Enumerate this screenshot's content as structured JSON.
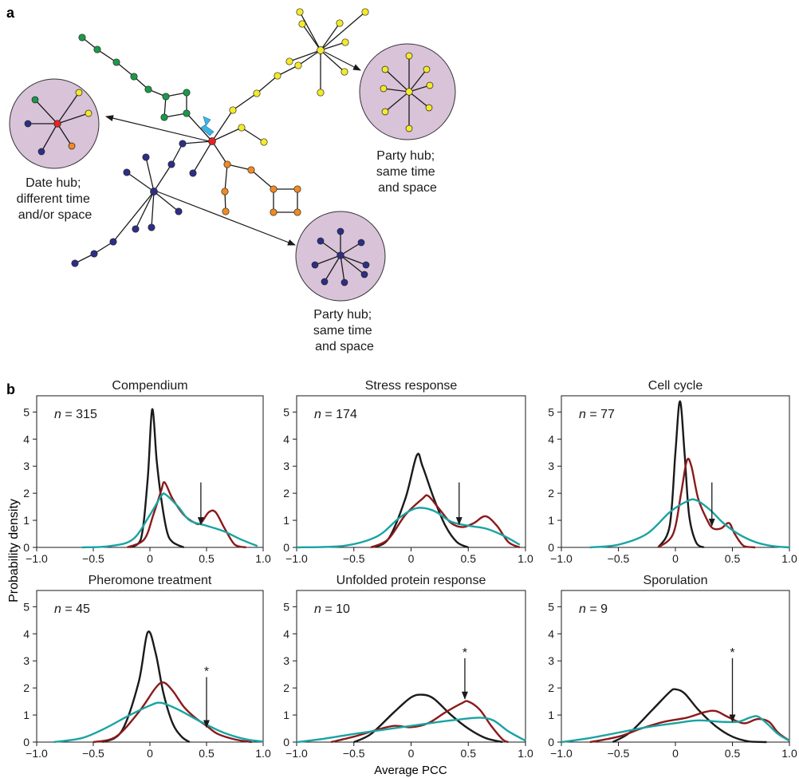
{
  "panel_a": {
    "label": "a",
    "callouts": [
      {
        "name": "date-hub-callout",
        "lines": [
          "Date hub;",
          "different time",
          "and/or space"
        ]
      },
      {
        "name": "party-hub-callout-yellow",
        "lines": [
          "Party hub;",
          "same time",
          "and space"
        ]
      },
      {
        "name": "party-hub-callout-blue",
        "lines": [
          "Party hub;",
          "same time",
          "and space"
        ]
      }
    ],
    "colors": {
      "green": "#1a9a4a",
      "yellow": "#f5ea2a",
      "red": "#e8231f",
      "orange": "#f08a24",
      "blue": "#2d2f86",
      "circle_fill": "#d9c3d9",
      "bolt": "#39b6e8"
    }
  },
  "panel_b": {
    "label": "b",
    "ylabel": "Probability density",
    "xlabel": "Average PCC"
  },
  "chart_data": [
    {
      "type": "line",
      "title": "Compendium",
      "n_label": "n = 315",
      "xlim": [
        -1,
        1
      ],
      "ylim": [
        0,
        5.6
      ],
      "x_ticks": [
        "−1.0",
        "−0.5",
        "0",
        "0.5",
        "1.0"
      ],
      "y_ticks": [
        "0",
        "1",
        "2",
        "3",
        "4",
        "5"
      ],
      "series": [
        {
          "color": "#1a1a1a",
          "points": [
            [
              -0.18,
              0
            ],
            [
              -0.08,
              0.3
            ],
            [
              -0.02,
              2.5
            ],
            [
              0.02,
              5.1
            ],
            [
              0.06,
              3.2
            ],
            [
              0.1,
              1.8
            ],
            [
              0.15,
              0.6
            ],
            [
              0.2,
              0.2
            ],
            [
              0.3,
              0
            ]
          ]
        },
        {
          "color": "#8b1a1a",
          "points": [
            [
              -0.2,
              0
            ],
            [
              -0.05,
              0.3
            ],
            [
              0.03,
              1.2
            ],
            [
              0.1,
              2.1
            ],
            [
              0.13,
              2.4
            ],
            [
              0.2,
              1.8
            ],
            [
              0.3,
              1.2
            ],
            [
              0.4,
              0.9
            ],
            [
              0.45,
              0.9
            ],
            [
              0.52,
              1.3
            ],
            [
              0.58,
              1.3
            ],
            [
              0.66,
              0.7
            ],
            [
              0.75,
              0.1
            ],
            [
              0.85,
              0
            ]
          ]
        },
        {
          "color": "#1aa3a3",
          "points": [
            [
              -0.6,
              0
            ],
            [
              -0.35,
              0.05
            ],
            [
              -0.15,
              0.3
            ],
            [
              0,
              1.2
            ],
            [
              0.1,
              1.9
            ],
            [
              0.14,
              1.95
            ],
            [
              0.25,
              1.5
            ],
            [
              0.35,
              1.0
            ],
            [
              0.5,
              0.8
            ],
            [
              0.65,
              0.6
            ],
            [
              0.8,
              0.3
            ],
            [
              0.95,
              0.05
            ]
          ]
        }
      ],
      "annotations": [
        {
          "type": "arrow",
          "x": 0.45,
          "from_y": 2.4,
          "to_y": 0.85,
          "label": ""
        }
      ]
    },
    {
      "type": "line",
      "title": "Stress response",
      "n_label": "n = 174",
      "xlim": [
        -1,
        1
      ],
      "ylim": [
        0,
        5.6
      ],
      "x_ticks": [
        "−1.0",
        "−0.5",
        "0",
        "0.5",
        "1.0"
      ],
      "y_ticks": [
        "0",
        "1",
        "2",
        "3",
        "4",
        "5"
      ],
      "series": [
        {
          "color": "#1a1a1a",
          "points": [
            [
              -0.35,
              0
            ],
            [
              -0.2,
              0.3
            ],
            [
              -0.05,
              1.8
            ],
            [
              0.05,
              3.4
            ],
            [
              0.1,
              3.0
            ],
            [
              0.2,
              1.8
            ],
            [
              0.3,
              0.8
            ],
            [
              0.4,
              0.2
            ],
            [
              0.5,
              0
            ]
          ]
        },
        {
          "color": "#8b1a1a",
          "points": [
            [
              -0.35,
              0
            ],
            [
              -0.2,
              0.3
            ],
            [
              -0.05,
              1.2
            ],
            [
              0.1,
              1.8
            ],
            [
              0.15,
              1.9
            ],
            [
              0.25,
              1.4
            ],
            [
              0.35,
              0.9
            ],
            [
              0.45,
              0.75
            ],
            [
              0.55,
              0.9
            ],
            [
              0.65,
              1.15
            ],
            [
              0.75,
              0.8
            ],
            [
              0.85,
              0.2
            ],
            [
              0.95,
              0
            ]
          ]
        },
        {
          "color": "#1aa3a3",
          "points": [
            [
              -1,
              0
            ],
            [
              -0.6,
              0.05
            ],
            [
              -0.3,
              0.4
            ],
            [
              -0.1,
              1.1
            ],
            [
              0.05,
              1.45
            ],
            [
              0.2,
              1.35
            ],
            [
              0.35,
              0.95
            ],
            [
              0.5,
              0.8
            ],
            [
              0.65,
              0.7
            ],
            [
              0.8,
              0.45
            ],
            [
              0.95,
              0.1
            ]
          ]
        }
      ],
      "annotations": [
        {
          "type": "arrow",
          "x": 0.42,
          "from_y": 2.4,
          "to_y": 0.85,
          "label": ""
        }
      ]
    },
    {
      "type": "line",
      "title": "Cell cycle",
      "n_label": "n = 77",
      "xlim": [
        -1,
        1
      ],
      "ylim": [
        0,
        5.6
      ],
      "x_ticks": [
        "−1.0",
        "−0.5",
        "0",
        "0.5",
        "1.0"
      ],
      "y_ticks": [
        "0",
        "1",
        "2",
        "3",
        "4",
        "5"
      ],
      "series": [
        {
          "color": "#1a1a1a",
          "points": [
            [
              -0.15,
              0
            ],
            [
              -0.05,
              0.8
            ],
            [
              0.0,
              3.5
            ],
            [
              0.04,
              5.4
            ],
            [
              0.08,
              3.5
            ],
            [
              0.12,
              1.2
            ],
            [
              0.18,
              0.2
            ],
            [
              0.25,
              0
            ]
          ]
        },
        {
          "color": "#8b1a1a",
          "points": [
            [
              -0.15,
              0
            ],
            [
              -0.02,
              0.5
            ],
            [
              0.05,
              2.0
            ],
            [
              0.1,
              3.2
            ],
            [
              0.14,
              3.0
            ],
            [
              0.2,
              1.8
            ],
            [
              0.28,
              1.0
            ],
            [
              0.33,
              0.7
            ],
            [
              0.4,
              0.7
            ],
            [
              0.47,
              0.9
            ],
            [
              0.52,
              0.5
            ],
            [
              0.6,
              0.05
            ],
            [
              0.7,
              0
            ]
          ]
        },
        {
          "color": "#1aa3a3",
          "points": [
            [
              -0.75,
              0
            ],
            [
              -0.5,
              0.1
            ],
            [
              -0.25,
              0.5
            ],
            [
              -0.05,
              1.3
            ],
            [
              0.1,
              1.7
            ],
            [
              0.18,
              1.75
            ],
            [
              0.3,
              1.4
            ],
            [
              0.42,
              0.9
            ],
            [
              0.55,
              0.5
            ],
            [
              0.7,
              0.2
            ],
            [
              0.85,
              0.05
            ],
            [
              1,
              0
            ]
          ]
        }
      ],
      "annotations": [
        {
          "type": "arrow",
          "x": 0.32,
          "from_y": 2.4,
          "to_y": 0.8,
          "label": ""
        }
      ]
    },
    {
      "type": "line",
      "title": "Pheromone treatment",
      "n_label": "n = 45",
      "xlim": [
        -1,
        1
      ],
      "ylim": [
        0,
        5.6
      ],
      "x_ticks": [
        "−1.0",
        "−0.5",
        "0",
        "0.5",
        "1.0"
      ],
      "y_ticks": [
        "0",
        "1",
        "2",
        "3",
        "4",
        "5"
      ],
      "series": [
        {
          "color": "#1a1a1a",
          "points": [
            [
              -0.42,
              0
            ],
            [
              -0.25,
              0.4
            ],
            [
              -0.1,
              2.2
            ],
            [
              -0.02,
              4.05
            ],
            [
              0.05,
              3.3
            ],
            [
              0.12,
              1.8
            ],
            [
              0.2,
              0.7
            ],
            [
              0.28,
              0.2
            ],
            [
              0.35,
              0
            ]
          ]
        },
        {
          "color": "#8b1a1a",
          "points": [
            [
              -0.5,
              0
            ],
            [
              -0.3,
              0.2
            ],
            [
              -0.1,
              1.1
            ],
            [
              0.05,
              2.0
            ],
            [
              0.12,
              2.2
            ],
            [
              0.2,
              1.9
            ],
            [
              0.3,
              1.3
            ],
            [
              0.4,
              0.9
            ],
            [
              0.5,
              0.6
            ],
            [
              0.6,
              0.3
            ],
            [
              0.75,
              0.1
            ],
            [
              0.9,
              0
            ]
          ]
        },
        {
          "color": "#1aa3a3",
          "points": [
            [
              -0.85,
              0
            ],
            [
              -0.6,
              0.15
            ],
            [
              -0.4,
              0.5
            ],
            [
              -0.2,
              0.95
            ],
            [
              0,
              1.35
            ],
            [
              0.1,
              1.45
            ],
            [
              0.25,
              1.2
            ],
            [
              0.45,
              0.75
            ],
            [
              0.65,
              0.35
            ],
            [
              0.85,
              0.1
            ],
            [
              1,
              0.02
            ]
          ]
        }
      ],
      "annotations": [
        {
          "type": "arrow",
          "x": 0.5,
          "from_y": 2.4,
          "to_y": 0.55,
          "label": "*"
        }
      ]
    },
    {
      "type": "line",
      "title": "Unfolded protein response",
      "n_label": "n = 10",
      "xlim": [
        -1,
        1
      ],
      "ylim": [
        0,
        5.6
      ],
      "x_ticks": [
        "−1.0",
        "−0.5",
        "0",
        "0.5",
        "1.0"
      ],
      "y_ticks": [
        "0",
        "1",
        "2",
        "3",
        "4",
        "5"
      ],
      "series": [
        {
          "color": "#1a1a1a",
          "points": [
            [
              -0.5,
              0
            ],
            [
              -0.35,
              0.3
            ],
            [
              -0.15,
              1.1
            ],
            [
              0,
              1.65
            ],
            [
              0.1,
              1.75
            ],
            [
              0.2,
              1.6
            ],
            [
              0.35,
              1.0
            ],
            [
              0.5,
              0.5
            ],
            [
              0.65,
              0.15
            ],
            [
              0.8,
              0
            ]
          ]
        },
        {
          "color": "#8b1a1a",
          "points": [
            [
              -0.7,
              0
            ],
            [
              -0.5,
              0.2
            ],
            [
              -0.3,
              0.45
            ],
            [
              -0.15,
              0.6
            ],
            [
              0,
              0.55
            ],
            [
              0.15,
              0.7
            ],
            [
              0.3,
              1.1
            ],
            [
              0.45,
              1.45
            ],
            [
              0.5,
              1.5
            ],
            [
              0.6,
              1.2
            ],
            [
              0.7,
              0.6
            ],
            [
              0.8,
              0.1
            ],
            [
              0.85,
              0
            ]
          ]
        },
        {
          "color": "#1aa3a3",
          "points": [
            [
              -1,
              0
            ],
            [
              -0.8,
              0.1
            ],
            [
              -0.5,
              0.3
            ],
            [
              -0.25,
              0.45
            ],
            [
              0,
              0.6
            ],
            [
              0.25,
              0.75
            ],
            [
              0.45,
              0.85
            ],
            [
              0.6,
              0.9
            ],
            [
              0.72,
              0.8
            ],
            [
              0.85,
              0.4
            ],
            [
              1,
              0.05
            ]
          ]
        }
      ],
      "annotations": [
        {
          "type": "arrow",
          "x": 0.47,
          "from_y": 3.1,
          "to_y": 1.6,
          "label": "*"
        }
      ]
    },
    {
      "type": "line",
      "title": "Sporulation",
      "n_label": "n = 9",
      "xlim": [
        -1,
        1
      ],
      "ylim": [
        0,
        5.6
      ],
      "x_ticks": [
        "−1.0",
        "−0.5",
        "0",
        "0.5",
        "1.0"
      ],
      "y_ticks": [
        "0",
        "1",
        "2",
        "3",
        "4",
        "5"
      ],
      "series": [
        {
          "color": "#1a1a1a",
          "points": [
            [
              -0.55,
              0
            ],
            [
              -0.4,
              0.35
            ],
            [
              -0.2,
              1.2
            ],
            [
              -0.05,
              1.85
            ],
            [
              0.0,
              1.95
            ],
            [
              0.08,
              1.8
            ],
            [
              0.2,
              1.2
            ],
            [
              0.35,
              0.6
            ],
            [
              0.5,
              0.2
            ],
            [
              0.65,
              0.02
            ],
            [
              0.8,
              0
            ]
          ]
        },
        {
          "color": "#8b1a1a",
          "points": [
            [
              -0.75,
              0
            ],
            [
              -0.5,
              0.2
            ],
            [
              -0.3,
              0.5
            ],
            [
              -0.1,
              0.75
            ],
            [
              0.1,
              0.9
            ],
            [
              0.25,
              1.1
            ],
            [
              0.35,
              1.15
            ],
            [
              0.45,
              0.95
            ],
            [
              0.55,
              0.75
            ],
            [
              0.62,
              0.7
            ],
            [
              0.72,
              0.85
            ],
            [
              0.82,
              0.75
            ],
            [
              0.9,
              0.35
            ],
            [
              1,
              0.05
            ]
          ]
        },
        {
          "color": "#1aa3a3",
          "points": [
            [
              -1,
              0
            ],
            [
              -0.75,
              0.15
            ],
            [
              -0.5,
              0.35
            ],
            [
              -0.25,
              0.55
            ],
            [
              0,
              0.7
            ],
            [
              0.2,
              0.8
            ],
            [
              0.4,
              0.75
            ],
            [
              0.55,
              0.75
            ],
            [
              0.65,
              0.9
            ],
            [
              0.72,
              0.95
            ],
            [
              0.8,
              0.7
            ],
            [
              0.9,
              0.3
            ],
            [
              1,
              0.05
            ]
          ]
        }
      ],
      "annotations": [
        {
          "type": "arrow",
          "x": 0.5,
          "from_y": 3.1,
          "to_y": 0.75,
          "label": "*"
        }
      ]
    }
  ]
}
